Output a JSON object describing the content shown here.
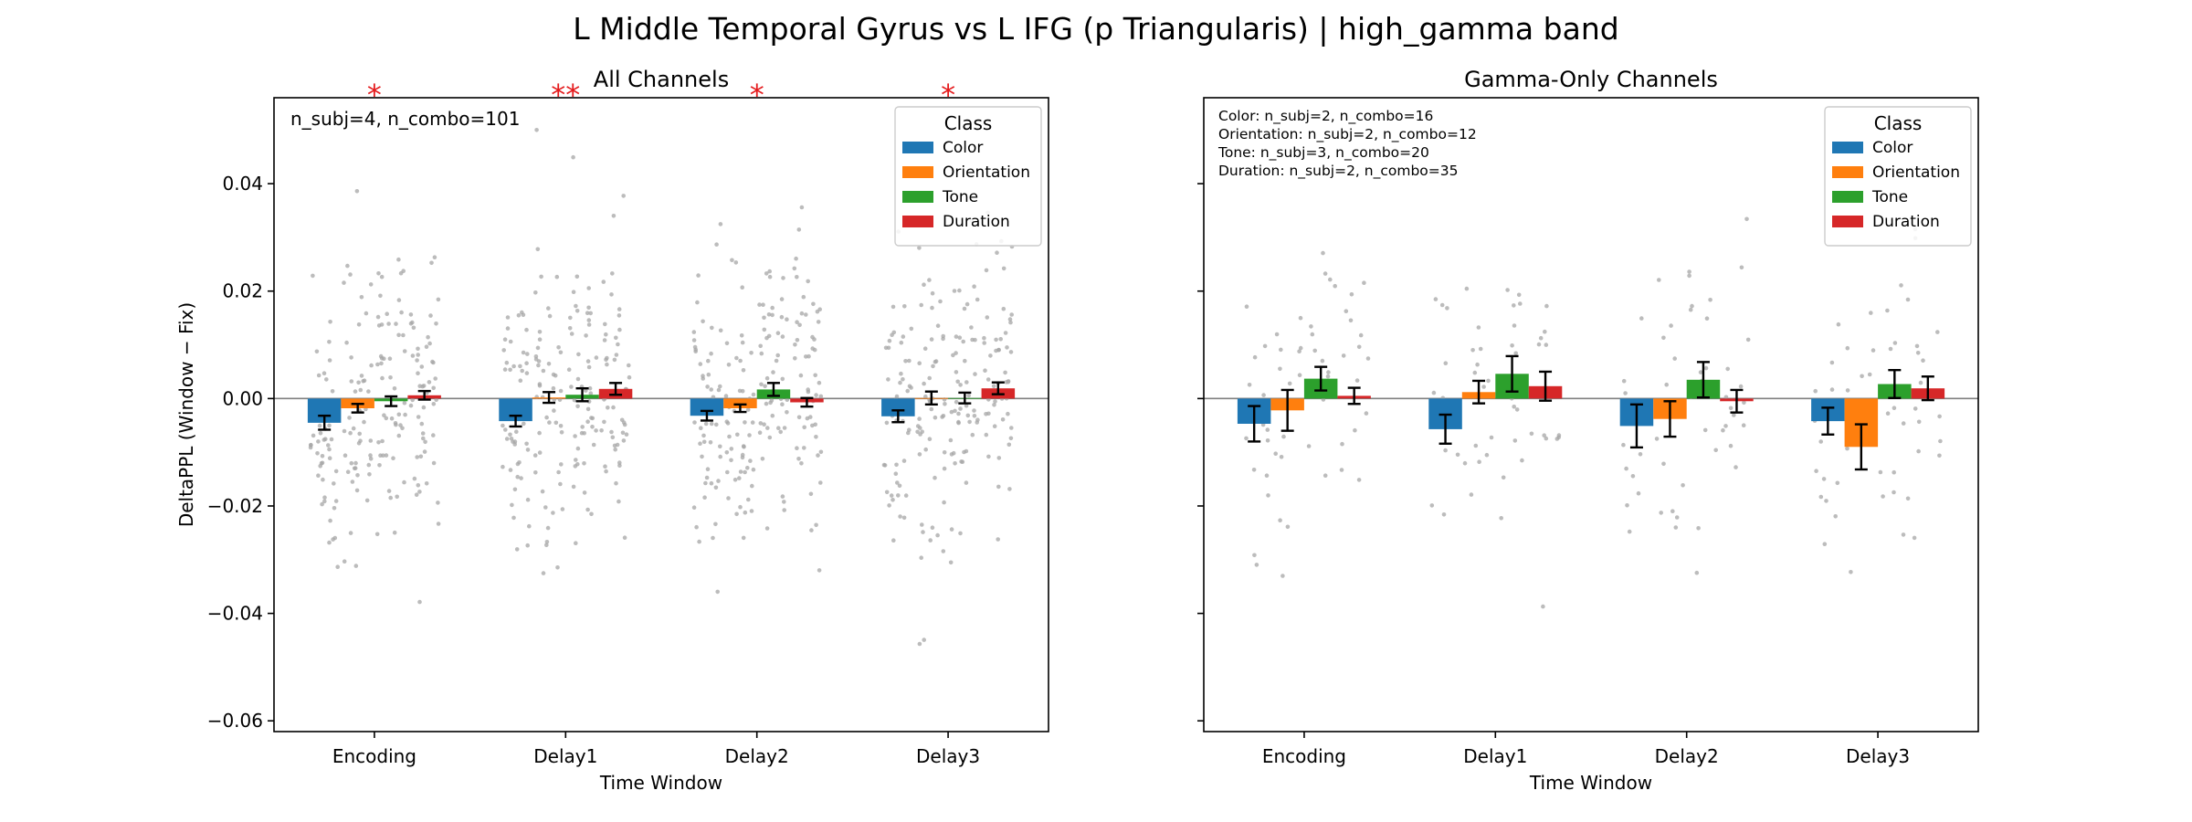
{
  "figure": {
    "title": "L Middle Temporal Gyrus vs L IFG (p Triangularis)  |  high_gamma band"
  },
  "colors": {
    "Color": "#1f77b4",
    "Orientation": "#ff7f0e",
    "Tone": "#2ca02c",
    "Duration": "#d62728",
    "points": "#a6a6a6",
    "significance": "#e41a1c"
  },
  "chart_data": [
    {
      "type": "bar",
      "title": "All Channels",
      "xlabel": "Time Window",
      "ylabel": "DeltaPPL (Window − Fix)",
      "categories": [
        "Encoding",
        "Delay1",
        "Delay2",
        "Delay3"
      ],
      "ylim": [
        -0.062,
        0.056
      ],
      "yticks": [
        -0.06,
        -0.04,
        -0.02,
        0.0,
        0.02,
        0.04
      ],
      "ytick_labels": [
        "−0.06",
        "−0.04",
        "−0.02",
        "0.00",
        "0.02",
        "0.04"
      ],
      "legend": {
        "title": "Class",
        "position": "top-right"
      },
      "series": [
        {
          "name": "Color",
          "values": [
            -0.0045,
            -0.0042,
            -0.0032,
            -0.0033
          ],
          "errors": [
            0.0013,
            0.001,
            0.0009,
            0.0011
          ]
        },
        {
          "name": "Orientation",
          "values": [
            -0.0018,
            0.0002,
            -0.0018,
            0.0001
          ],
          "errors": [
            0.0008,
            0.001,
            0.0007,
            0.0012
          ]
        },
        {
          "name": "Tone",
          "values": [
            -0.0005,
            0.0007,
            0.0017,
            0.0001
          ],
          "errors": [
            0.0009,
            0.0012,
            0.0012,
            0.001
          ]
        },
        {
          "name": "Duration",
          "values": [
            0.0006,
            0.0018,
            -0.0007,
            0.0019
          ],
          "errors": [
            0.0008,
            0.0011,
            0.0008,
            0.0011
          ]
        }
      ],
      "significance": [
        {
          "category": "Encoding",
          "label": "*"
        },
        {
          "category": "Delay1",
          "label": "**"
        },
        {
          "category": "Delay2",
          "label": "*"
        },
        {
          "category": "Delay3",
          "label": "*"
        }
      ],
      "annotations": [
        "n_subj=4, n_combo=101"
      ],
      "scatter_points_per_bar": 50
    },
    {
      "type": "bar",
      "title": "Gamma-Only Channels",
      "xlabel": "Time Window",
      "categories": [
        "Encoding",
        "Delay1",
        "Delay2",
        "Delay3"
      ],
      "ylim": [
        -0.062,
        0.056
      ],
      "yticks": [
        -0.06,
        -0.04,
        -0.02,
        0.0,
        0.02,
        0.04
      ],
      "legend": {
        "title": "Class",
        "position": "top-right"
      },
      "series": [
        {
          "name": "Color",
          "values": [
            -0.0047,
            -0.0057,
            -0.0051,
            -0.0042
          ],
          "errors": [
            0.0033,
            0.0027,
            0.004,
            0.0025
          ]
        },
        {
          "name": "Orientation",
          "values": [
            -0.0022,
            0.0012,
            -0.0038,
            -0.009
          ],
          "errors": [
            0.0038,
            0.0021,
            0.0033,
            0.0042
          ]
        },
        {
          "name": "Tone",
          "values": [
            0.0037,
            0.0046,
            0.0035,
            0.0027
          ],
          "errors": [
            0.0022,
            0.0033,
            0.0033,
            0.0026
          ]
        },
        {
          "name": "Duration",
          "values": [
            0.0005,
            0.0023,
            -0.0005,
            0.0019
          ],
          "errors": [
            0.0015,
            0.0027,
            0.0021,
            0.0022
          ]
        }
      ],
      "annotations": [
        "Color: n_subj=2, n_combo=16",
        "Orientation: n_subj=2, n_combo=12",
        "Tone: n_subj=3, n_combo=20",
        "Duration: n_subj=2, n_combo=35"
      ],
      "scatter_points_per_bar": 14
    }
  ]
}
